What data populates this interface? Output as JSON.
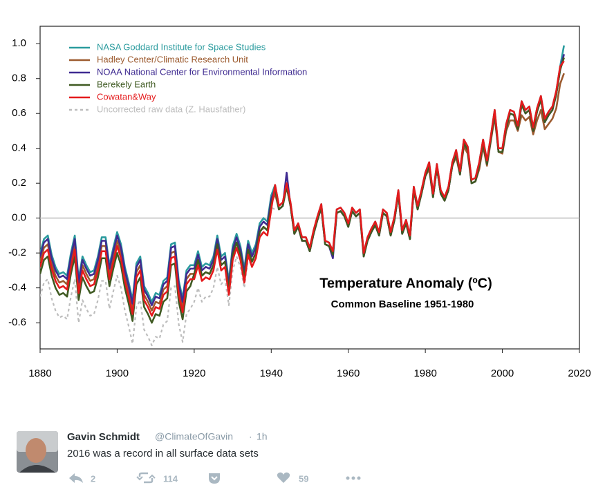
{
  "chart_data": {
    "type": "line",
    "annotation_title": "Temperature Anomaly (ºC)",
    "annotation_subtitle": "Common Baseline 1951-1980",
    "xlim": [
      1880,
      2020
    ],
    "xticks": [
      1880,
      1900,
      1920,
      1940,
      1960,
      1980,
      2000,
      2020
    ],
    "ylim": [
      -0.75,
      1.1
    ],
    "yticks": [
      -0.6,
      -0.4,
      -0.2,
      {
        "value": 0,
        "label": "0.0"
      },
      0.2,
      0.4,
      0.6,
      0.8,
      {
        "value": 1,
        "label": "1.0"
      }
    ],
    "legend": "upper left",
    "x": [
      1880,
      1881,
      1882,
      1883,
      1884,
      1885,
      1886,
      1887,
      1888,
      1889,
      1890,
      1891,
      1892,
      1893,
      1894,
      1895,
      1896,
      1897,
      1898,
      1899,
      1900,
      1901,
      1902,
      1903,
      1904,
      1905,
      1906,
      1907,
      1908,
      1909,
      1910,
      1911,
      1912,
      1913,
      1914,
      1915,
      1916,
      1917,
      1918,
      1919,
      1920,
      1921,
      1922,
      1923,
      1924,
      1925,
      1926,
      1927,
      1928,
      1929,
      1930,
      1931,
      1932,
      1933,
      1934,
      1935,
      1936,
      1937,
      1938,
      1939,
      1940,
      1941,
      1942,
      1943,
      1944,
      1945,
      1946,
      1947,
      1948,
      1949,
      1950,
      1951,
      1952,
      1953,
      1954,
      1955,
      1956,
      1957,
      1958,
      1959,
      1960,
      1961,
      1962,
      1963,
      1964,
      1965,
      1966,
      1967,
      1968,
      1969,
      1970,
      1971,
      1972,
      1973,
      1974,
      1975,
      1976,
      1977,
      1978,
      1979,
      1980,
      1981,
      1982,
      1983,
      1984,
      1985,
      1986,
      1987,
      1988,
      1989,
      1990,
      1991,
      1992,
      1993,
      1994,
      1995,
      1996,
      1997,
      1998,
      1999,
      2000,
      2001,
      2002,
      2003,
      2004,
      2005,
      2006,
      2007,
      2008,
      2009,
      2010,
      2011,
      2012,
      2013,
      2014,
      2015,
      2016
    ],
    "series": [
      {
        "name": "NASA Goddard Institute for Space Studies",
        "color": "#2a9b9e",
        "dashed": false,
        "values": [
          -0.2,
          -0.12,
          -0.1,
          -0.21,
          -0.28,
          -0.32,
          -0.31,
          -0.33,
          -0.2,
          -0.1,
          -0.35,
          -0.22,
          -0.27,
          -0.31,
          -0.3,
          -0.22,
          -0.11,
          -0.11,
          -0.27,
          -0.17,
          -0.08,
          -0.15,
          -0.28,
          -0.37,
          -0.47,
          -0.26,
          -0.22,
          -0.39,
          -0.43,
          -0.48,
          -0.43,
          -0.44,
          -0.36,
          -0.34,
          -0.15,
          -0.14,
          -0.36,
          -0.46,
          -0.3,
          -0.27,
          -0.27,
          -0.19,
          -0.28,
          -0.26,
          -0.27,
          -0.22,
          -0.1,
          -0.22,
          -0.2,
          -0.36,
          -0.16,
          -0.09,
          -0.16,
          -0.29,
          -0.13,
          -0.2,
          -0.15,
          -0.03,
          0.0,
          -0.02,
          0.13,
          0.19,
          0.07,
          0.09,
          0.2,
          0.09,
          -0.07,
          -0.03,
          -0.11,
          -0.11,
          -0.17,
          -0.07,
          0.01,
          0.08,
          -0.13,
          -0.14,
          -0.19,
          0.05,
          0.06,
          0.03,
          -0.03,
          0.06,
          0.03,
          0.05,
          -0.2,
          -0.11,
          -0.06,
          -0.02,
          -0.08,
          0.05,
          0.03,
          -0.08,
          0.01,
          0.16,
          -0.07,
          -0.01,
          -0.1,
          0.18,
          0.07,
          0.16,
          0.26,
          0.32,
          0.14,
          0.31,
          0.16,
          0.12,
          0.18,
          0.32,
          0.39,
          0.27,
          0.45,
          0.41,
          0.22,
          0.23,
          0.32,
          0.45,
          0.33,
          0.47,
          0.62,
          0.4,
          0.4,
          0.54,
          0.62,
          0.61,
          0.53,
          0.67,
          0.62,
          0.64,
          0.52,
          0.63,
          0.7,
          0.57,
          0.61,
          0.64,
          0.73,
          0.87,
          0.99
        ]
      },
      {
        "name": "Hadley Center/Climatic Research Unit",
        "color": "#9c5a2e",
        "dashed": false,
        "values": [
          -0.25,
          -0.17,
          -0.15,
          -0.26,
          -0.33,
          -0.37,
          -0.36,
          -0.38,
          -0.25,
          -0.15,
          -0.4,
          -0.27,
          -0.32,
          -0.36,
          -0.35,
          -0.27,
          -0.16,
          -0.16,
          -0.32,
          -0.22,
          -0.13,
          -0.2,
          -0.33,
          -0.42,
          -0.52,
          -0.31,
          -0.27,
          -0.44,
          -0.48,
          -0.53,
          -0.48,
          -0.49,
          -0.41,
          -0.39,
          -0.2,
          -0.19,
          -0.41,
          -0.51,
          -0.35,
          -0.32,
          -0.32,
          -0.24,
          -0.33,
          -0.31,
          -0.32,
          -0.27,
          -0.15,
          -0.27,
          -0.25,
          -0.41,
          -0.21,
          -0.14,
          -0.21,
          -0.34,
          -0.18,
          -0.25,
          -0.2,
          -0.08,
          -0.05,
          -0.07,
          0.08,
          0.14,
          0.05,
          0.07,
          0.18,
          0.07,
          -0.09,
          -0.05,
          -0.13,
          -0.13,
          -0.19,
          -0.09,
          -0.01,
          0.06,
          -0.15,
          -0.16,
          -0.21,
          0.03,
          0.04,
          0.01,
          -0.05,
          0.04,
          0.01,
          0.03,
          -0.2,
          -0.13,
          -0.08,
          -0.04,
          -0.1,
          0.03,
          0.01,
          -0.1,
          -0.01,
          0.14,
          -0.09,
          -0.03,
          -0.12,
          0.16,
          0.05,
          0.14,
          0.24,
          0.28,
          0.12,
          0.29,
          0.14,
          0.1,
          0.16,
          0.3,
          0.35,
          0.25,
          0.41,
          0.37,
          0.2,
          0.21,
          0.28,
          0.41,
          0.3,
          0.44,
          0.58,
          0.38,
          0.37,
          0.5,
          0.56,
          0.56,
          0.5,
          0.59,
          0.56,
          0.58,
          0.48,
          0.56,
          0.62,
          0.51,
          0.54,
          0.57,
          0.63,
          0.77,
          0.83
        ]
      },
      {
        "name": "NOAA National Center for Environmental Information",
        "color": "#3f2b91",
        "dashed": false,
        "values": [
          -0.22,
          -0.14,
          -0.12,
          -0.23,
          -0.3,
          -0.34,
          -0.33,
          -0.35,
          -0.22,
          -0.12,
          -0.37,
          -0.24,
          -0.29,
          -0.33,
          -0.32,
          -0.24,
          -0.13,
          -0.13,
          -0.29,
          -0.19,
          -0.1,
          -0.17,
          -0.3,
          -0.39,
          -0.49,
          -0.28,
          -0.24,
          -0.41,
          -0.45,
          -0.5,
          -0.45,
          -0.46,
          -0.38,
          -0.36,
          -0.17,
          -0.16,
          -0.38,
          -0.48,
          -0.32,
          -0.29,
          -0.29,
          -0.21,
          -0.3,
          -0.28,
          -0.29,
          -0.24,
          -0.12,
          -0.24,
          -0.22,
          -0.38,
          -0.18,
          -0.11,
          -0.18,
          -0.31,
          -0.15,
          -0.22,
          -0.17,
          -0.05,
          -0.02,
          -0.04,
          0.11,
          0.17,
          0.05,
          0.07,
          0.26,
          0.07,
          -0.09,
          -0.05,
          -0.13,
          -0.13,
          -0.19,
          -0.09,
          -0.01,
          0.06,
          -0.15,
          -0.16,
          -0.23,
          0.03,
          0.04,
          0.01,
          -0.05,
          0.04,
          0.01,
          0.03,
          -0.22,
          -0.13,
          -0.08,
          -0.04,
          -0.1,
          0.03,
          0.01,
          -0.1,
          -0.01,
          0.14,
          -0.09,
          -0.03,
          -0.12,
          0.16,
          0.05,
          0.14,
          0.24,
          0.3,
          0.12,
          0.29,
          0.14,
          0.1,
          0.16,
          0.3,
          0.37,
          0.25,
          0.43,
          0.39,
          0.2,
          0.21,
          0.3,
          0.43,
          0.31,
          0.45,
          0.6,
          0.38,
          0.38,
          0.52,
          0.6,
          0.59,
          0.51,
          0.65,
          0.6,
          0.62,
          0.5,
          0.61,
          0.68,
          0.55,
          0.59,
          0.62,
          0.71,
          0.85,
          0.94
        ]
      },
      {
        "name": "Berekely Earth",
        "color": "#3f5a22",
        "dashed": false,
        "values": [
          -0.32,
          -0.24,
          -0.22,
          -0.33,
          -0.4,
          -0.44,
          -0.43,
          -0.45,
          -0.32,
          -0.22,
          -0.47,
          -0.34,
          -0.39,
          -0.43,
          -0.42,
          -0.34,
          -0.23,
          -0.23,
          -0.39,
          -0.29,
          -0.2,
          -0.27,
          -0.4,
          -0.49,
          -0.59,
          -0.38,
          -0.34,
          -0.51,
          -0.55,
          -0.6,
          -0.55,
          -0.56,
          -0.48,
          -0.46,
          -0.27,
          -0.26,
          -0.48,
          -0.58,
          -0.42,
          -0.39,
          -0.32,
          -0.24,
          -0.33,
          -0.31,
          -0.32,
          -0.27,
          -0.15,
          -0.27,
          -0.25,
          -0.41,
          -0.21,
          -0.14,
          -0.21,
          -0.34,
          -0.18,
          -0.25,
          -0.2,
          -0.08,
          -0.05,
          -0.07,
          0.08,
          0.17,
          0.05,
          0.07,
          0.18,
          0.07,
          -0.09,
          -0.05,
          -0.13,
          -0.13,
          -0.19,
          -0.09,
          -0.01,
          0.06,
          -0.15,
          -0.16,
          -0.21,
          0.03,
          0.04,
          0.01,
          -0.05,
          0.04,
          0.01,
          0.03,
          -0.22,
          -0.13,
          -0.08,
          -0.04,
          -0.1,
          0.03,
          0.01,
          -0.1,
          -0.01,
          0.14,
          -0.09,
          -0.03,
          -0.12,
          0.16,
          0.05,
          0.14,
          0.24,
          0.3,
          0.12,
          0.29,
          0.14,
          0.1,
          0.16,
          0.3,
          0.37,
          0.25,
          0.43,
          0.39,
          0.2,
          0.21,
          0.3,
          0.43,
          0.31,
          0.45,
          0.6,
          0.38,
          0.38,
          0.52,
          0.6,
          0.59,
          0.51,
          0.65,
          0.6,
          0.62,
          0.5,
          0.61,
          0.68,
          0.55,
          0.59,
          0.62,
          0.71,
          0.85,
          0.92
        ]
      },
      {
        "name": "Cowatan&Way",
        "color": "#e41a1c",
        "dashed": false,
        "values": [
          -0.28,
          -0.2,
          -0.18,
          -0.29,
          -0.36,
          -0.4,
          -0.39,
          -0.41,
          -0.28,
          -0.18,
          -0.43,
          -0.3,
          -0.35,
          -0.39,
          -0.38,
          -0.3,
          -0.19,
          -0.19,
          -0.35,
          -0.25,
          -0.16,
          -0.23,
          -0.36,
          -0.45,
          -0.55,
          -0.34,
          -0.3,
          -0.47,
          -0.51,
          -0.56,
          -0.51,
          -0.52,
          -0.44,
          -0.42,
          -0.23,
          -0.22,
          -0.44,
          -0.54,
          -0.38,
          -0.35,
          -0.35,
          -0.27,
          -0.36,
          -0.34,
          -0.35,
          -0.3,
          -0.18,
          -0.3,
          -0.28,
          -0.44,
          -0.24,
          -0.17,
          -0.24,
          -0.37,
          -0.21,
          -0.28,
          -0.23,
          -0.11,
          -0.08,
          -0.1,
          0.05,
          0.19,
          0.07,
          0.09,
          0.2,
          0.09,
          -0.07,
          -0.03,
          -0.11,
          -0.11,
          -0.17,
          -0.07,
          0.01,
          0.08,
          -0.13,
          -0.14,
          -0.19,
          0.05,
          0.06,
          0.03,
          -0.03,
          0.06,
          0.03,
          0.05,
          -0.2,
          -0.11,
          -0.06,
          -0.02,
          -0.08,
          0.05,
          0.03,
          -0.08,
          0.01,
          0.16,
          -0.07,
          -0.01,
          -0.1,
          0.18,
          0.07,
          0.16,
          0.26,
          0.32,
          0.14,
          0.31,
          0.16,
          0.12,
          0.18,
          0.32,
          0.39,
          0.27,
          0.45,
          0.41,
          0.22,
          0.23,
          0.32,
          0.45,
          0.33,
          0.47,
          0.62,
          0.4,
          0.4,
          0.54,
          0.62,
          0.61,
          0.53,
          0.67,
          0.62,
          0.64,
          0.52,
          0.63,
          0.7,
          0.57,
          0.61,
          0.64,
          0.73,
          0.87,
          0.9
        ]
      },
      {
        "name": "Uncorrected raw data (Z. Hausfather)",
        "color": "#bdbdbd",
        "dashed": true,
        "values": [
          -0.45,
          -0.37,
          -0.35,
          -0.46,
          -0.53,
          -0.57,
          -0.56,
          -0.58,
          -0.45,
          -0.35,
          -0.6,
          -0.47,
          -0.52,
          -0.56,
          -0.55,
          -0.47,
          -0.36,
          -0.36,
          -0.52,
          -0.42,
          -0.33,
          -0.4,
          -0.53,
          -0.62,
          -0.72,
          -0.51,
          -0.47,
          -0.64,
          -0.68,
          -0.73,
          -0.68,
          -0.69,
          -0.61,
          -0.59,
          -0.4,
          -0.39,
          -0.61,
          -0.71,
          -0.55,
          -0.52,
          -0.48,
          -0.4,
          -0.48,
          -0.45,
          -0.45,
          -0.4,
          -0.28,
          -0.38,
          -0.35,
          -0.5,
          -0.3,
          -0.22,
          -0.28,
          -0.4,
          -0.23,
          -0.28,
          -0.22,
          -0.1,
          -0.06,
          -0.06,
          0.06,
          0.05,
          null,
          null,
          null,
          null,
          null,
          null,
          null,
          null,
          null,
          null,
          null,
          null,
          null,
          null,
          null,
          null,
          null,
          null,
          null,
          null,
          null,
          null,
          null,
          null,
          null,
          null,
          null,
          null,
          null,
          null,
          null,
          null,
          null,
          null,
          null,
          null,
          null,
          null,
          null,
          null,
          null,
          null,
          null,
          null,
          null,
          null,
          null,
          null,
          null,
          null,
          null,
          null,
          null,
          null,
          null,
          null,
          null,
          null,
          null,
          null,
          null,
          null,
          null,
          null,
          null,
          null,
          null,
          null,
          null,
          null,
          null,
          null,
          null,
          null,
          null
        ]
      }
    ]
  },
  "tweet": {
    "author_name": "Gavin Schmidt",
    "handle": "@ClimateOfGavin",
    "time": "1h",
    "text": "2016 was a record in all surface data sets",
    "replies": 2,
    "retweets": 114,
    "likes": 59
  }
}
